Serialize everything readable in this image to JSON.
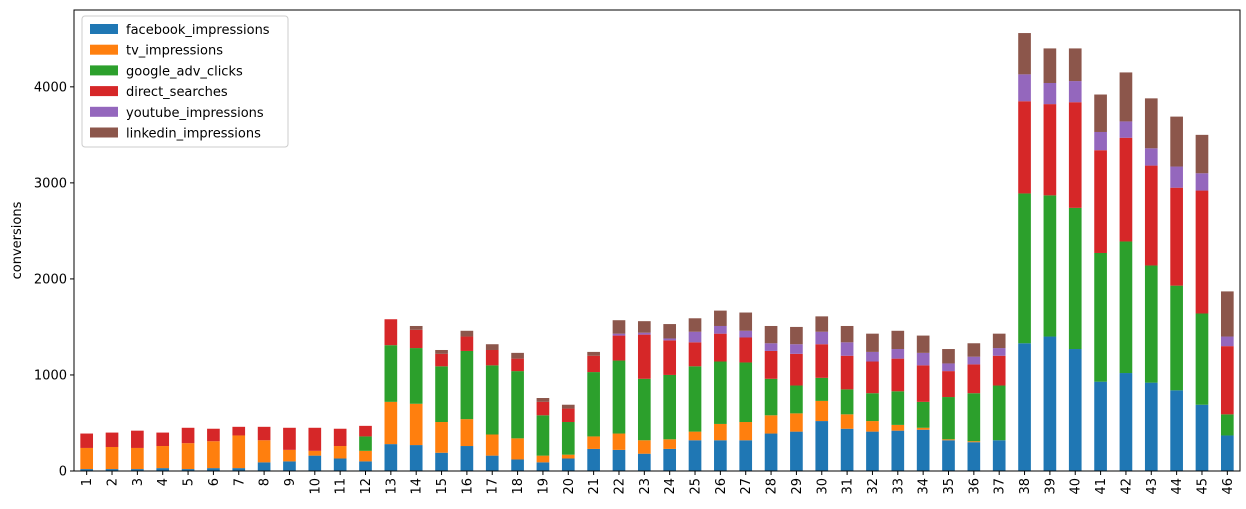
{
  "chart_data": {
    "type": "bar",
    "stacked": true,
    "title": "",
    "xlabel": "",
    "ylabel": "conversions",
    "ylim": [
      0,
      4800
    ],
    "yticks": [
      0,
      1000,
      2000,
      3000,
      4000
    ],
    "grid": false,
    "legend_position": "top-left",
    "categories": [
      "1",
      "2",
      "3",
      "4",
      "5",
      "6",
      "7",
      "8",
      "9",
      "10",
      "11",
      "12",
      "13",
      "14",
      "15",
      "16",
      "17",
      "18",
      "19",
      "20",
      "21",
      "22",
      "23",
      "24",
      "25",
      "26",
      "27",
      "28",
      "29",
      "30",
      "31",
      "32",
      "33",
      "34",
      "35",
      "36",
      "37",
      "38",
      "39",
      "40",
      "41",
      "42",
      "43",
      "44",
      "45",
      "46"
    ],
    "series": [
      {
        "name": "facebook_impressions",
        "color": "#1f77b4",
        "values": [
          20,
          20,
          20,
          30,
          20,
          30,
          30,
          90,
          100,
          160,
          130,
          100,
          280,
          270,
          190,
          260,
          160,
          120,
          90,
          130,
          230,
          220,
          180,
          230,
          320,
          320,
          320,
          390,
          410,
          520,
          440,
          410,
          420,
          430,
          320,
          300,
          320,
          1330,
          1400,
          1270,
          930,
          1020,
          920,
          840,
          690,
          370
        ]
      },
      {
        "name": "tv_impressions",
        "color": "#ff7f0e",
        "values": [
          220,
          230,
          220,
          230,
          270,
          280,
          340,
          230,
          120,
          50,
          130,
          110,
          440,
          430,
          320,
          280,
          220,
          220,
          70,
          40,
          130,
          170,
          140,
          100,
          90,
          170,
          190,
          190,
          190,
          210,
          150,
          110,
          60,
          20,
          10,
          10,
          0,
          0,
          0,
          0,
          0,
          0,
          0,
          0,
          0,
          0
        ]
      },
      {
        "name": "google_adv_clicks",
        "color": "#2ca02c",
        "values": [
          0,
          0,
          0,
          0,
          0,
          0,
          0,
          0,
          0,
          0,
          0,
          150,
          590,
          580,
          580,
          710,
          720,
          700,
          420,
          340,
          670,
          760,
          640,
          670,
          680,
          650,
          620,
          380,
          290,
          240,
          260,
          290,
          350,
          270,
          440,
          500,
          570,
          1560,
          1470,
          1470,
          1340,
          1370,
          1220,
          1090,
          950,
          220
        ]
      },
      {
        "name": "direct_searches",
        "color": "#d62728",
        "values": [
          150,
          150,
          180,
          140,
          160,
          130,
          90,
          140,
          230,
          240,
          180,
          110,
          270,
          190,
          130,
          150,
          160,
          130,
          140,
          140,
          170,
          260,
          460,
          360,
          250,
          290,
          260,
          290,
          330,
          350,
          350,
          330,
          340,
          380,
          270,
          300,
          310,
          960,
          950,
          1100,
          1070,
          1080,
          1040,
          1020,
          1280,
          710
        ]
      },
      {
        "name": "youtube_impressions",
        "color": "#9467bd",
        "values": [
          0,
          0,
          0,
          0,
          0,
          0,
          0,
          0,
          0,
          0,
          0,
          0,
          0,
          0,
          0,
          0,
          0,
          0,
          0,
          0,
          0,
          20,
          20,
          20,
          110,
          80,
          70,
          80,
          100,
          130,
          140,
          100,
          100,
          130,
          80,
          80,
          80,
          280,
          220,
          220,
          190,
          170,
          180,
          220,
          180,
          100
        ]
      },
      {
        "name": "linkedin_impressions",
        "color": "#8c564b",
        "values": [
          0,
          0,
          0,
          0,
          0,
          0,
          0,
          0,
          0,
          0,
          0,
          0,
          0,
          40,
          40,
          60,
          60,
          60,
          40,
          40,
          40,
          140,
          120,
          150,
          140,
          160,
          190,
          180,
          180,
          160,
          170,
          190,
          190,
          180,
          150,
          140,
          150,
          430,
          360,
          340,
          390,
          510,
          520,
          520,
          400,
          470
        ]
      }
    ]
  }
}
